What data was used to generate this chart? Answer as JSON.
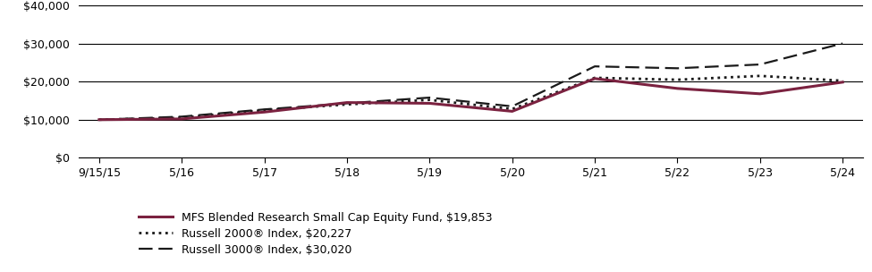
{
  "x_labels": [
    "9/15/15",
    "5/16",
    "5/17",
    "5/18",
    "5/19",
    "5/20",
    "5/21",
    "5/22",
    "5/23",
    "5/24"
  ],
  "x_positions": [
    0,
    1,
    2,
    3,
    4,
    5,
    6,
    7,
    8,
    9
  ],
  "fund_values": [
    10000,
    10200,
    12000,
    14500,
    14300,
    12200,
    20800,
    18200,
    16800,
    19853
  ],
  "russell2000_values": [
    10000,
    10500,
    12500,
    14000,
    15200,
    12800,
    21000,
    20500,
    21500,
    20227
  ],
  "russell3000_values": [
    10000,
    10800,
    12700,
    14300,
    15800,
    13500,
    24000,
    23500,
    24500,
    30020
  ],
  "fund_color": "#7b2240",
  "russell2000_color": "#1a1a1a",
  "russell3000_color": "#1a1a1a",
  "fund_label": "MFS Blended Research Small Cap Equity Fund, $19,853",
  "russell2000_label": "Russell 2000® Index, $20,227",
  "russell3000_label": "Russell 3000® Index, $30,020",
  "ylim": [
    0,
    40000
  ],
  "yticks": [
    0,
    10000,
    20000,
    30000,
    40000
  ],
  "ytick_labels": [
    "$0",
    "$10,000",
    "$20,000",
    "$30,000",
    "$40,000"
  ],
  "bg_color": "#ffffff",
  "grid_color": "#000000",
  "fund_linewidth": 2.2,
  "legend_fontsize": 9,
  "tick_fontsize": 9
}
